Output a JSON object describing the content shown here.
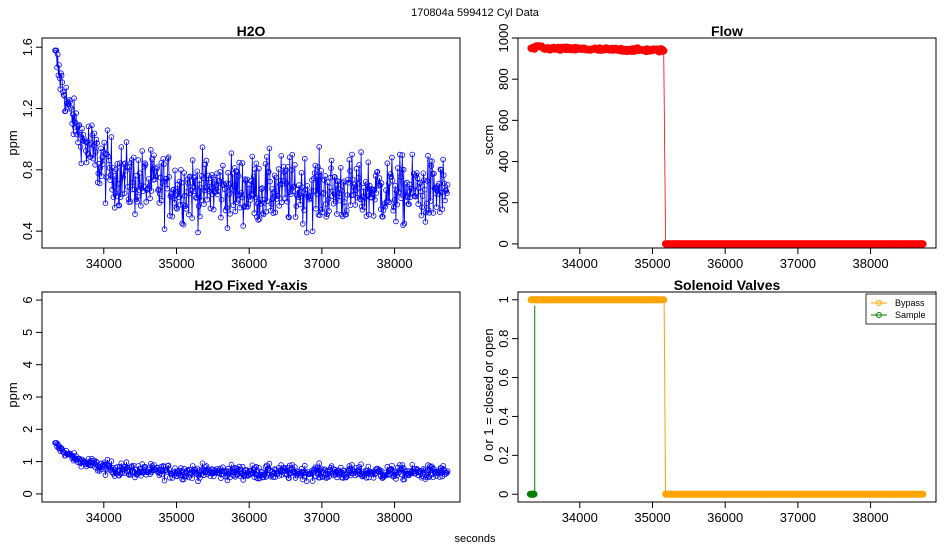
{
  "suptitle": "170804a   599412   Cyl Data",
  "xlabel_global": "seconds",
  "chart_data": [
    {
      "id": "h2o",
      "type": "line",
      "title": "H2O",
      "xlabel": "",
      "ylabel": "ppm",
      "xlim": [
        33150,
        38900
      ],
      "ylim": [
        0.29,
        1.66
      ],
      "xticks": [
        34000,
        35000,
        36000,
        37000,
        38000
      ],
      "yticks": [
        0.4,
        0.8,
        1.2,
        1.6
      ],
      "grid": false,
      "series": [
        {
          "color": "#0000ff",
          "marker": "circle-open",
          "x_start": 33330,
          "x_end": 38730,
          "points": 600,
          "trend": {
            "start": 1.55,
            "floor": 0.68,
            "decay_s": 380,
            "end_level": 0.66
          },
          "noise_ppm": 0.11,
          "observed_min": 0.34,
          "observed_max": 1.58
        }
      ]
    },
    {
      "id": "flow",
      "type": "line",
      "title": "Flow",
      "xlabel": "",
      "ylabel": "sccm",
      "xlim": [
        33150,
        38900
      ],
      "ylim": [
        -20,
        1000
      ],
      "xticks": [
        34000,
        35000,
        36000,
        37000,
        38000
      ],
      "yticks": [
        0,
        200,
        400,
        600,
        800,
        1000
      ],
      "grid": false,
      "series": [
        {
          "color": "#ff0000",
          "marker": "circle-filled",
          "segments": [
            {
              "x_start": 33330,
              "x_end": 35160,
              "level_start": 950,
              "level_end": 940,
              "peak": 962
            },
            {
              "x_start": 35180,
              "x_end": 38730,
              "level_start": 0,
              "level_end": 0
            }
          ]
        }
      ]
    },
    {
      "id": "h2o-fixed",
      "type": "line",
      "title": "H2O Fixed Y-axis",
      "xlabel": "",
      "ylabel": "ppm",
      "xlim": [
        33150,
        38900
      ],
      "ylim": [
        -0.25,
        6.25
      ],
      "xticks": [
        34000,
        35000,
        36000,
        37000,
        38000
      ],
      "yticks": [
        0,
        1,
        2,
        3,
        4,
        5,
        6
      ],
      "grid": false,
      "series": [
        {
          "color": "#0000ff",
          "marker": "circle-open",
          "same_as": "h2o"
        }
      ]
    },
    {
      "id": "valves",
      "type": "line",
      "title": "Solenoid Valves",
      "xlabel": "",
      "ylabel": "0 or 1 = closed or open",
      "xlim": [
        33150,
        38900
      ],
      "ylim": [
        -0.04,
        1.04
      ],
      "xticks": [
        34000,
        35000,
        36000,
        37000,
        38000
      ],
      "yticks": [
        0.0,
        0.2,
        0.4,
        0.6,
        0.8,
        1.0
      ],
      "grid": false,
      "legend_position": "top-right",
      "series": [
        {
          "name": "Bypass",
          "color": "#ffa500",
          "marker": "circle-filled",
          "steps": [
            {
              "x_start": 33330,
              "x_end": 35160,
              "value": 1
            },
            {
              "x_start": 35180,
              "x_end": 38730,
              "value": 0
            }
          ]
        },
        {
          "name": "Sample",
          "color": "#008000",
          "marker": "circle-filled",
          "steps": [
            {
              "x_start": 33320,
              "x_end": 33370,
              "value": 0
            },
            {
              "x_start": 33380,
              "x_end": 33380,
              "value": 1
            }
          ]
        }
      ]
    }
  ]
}
